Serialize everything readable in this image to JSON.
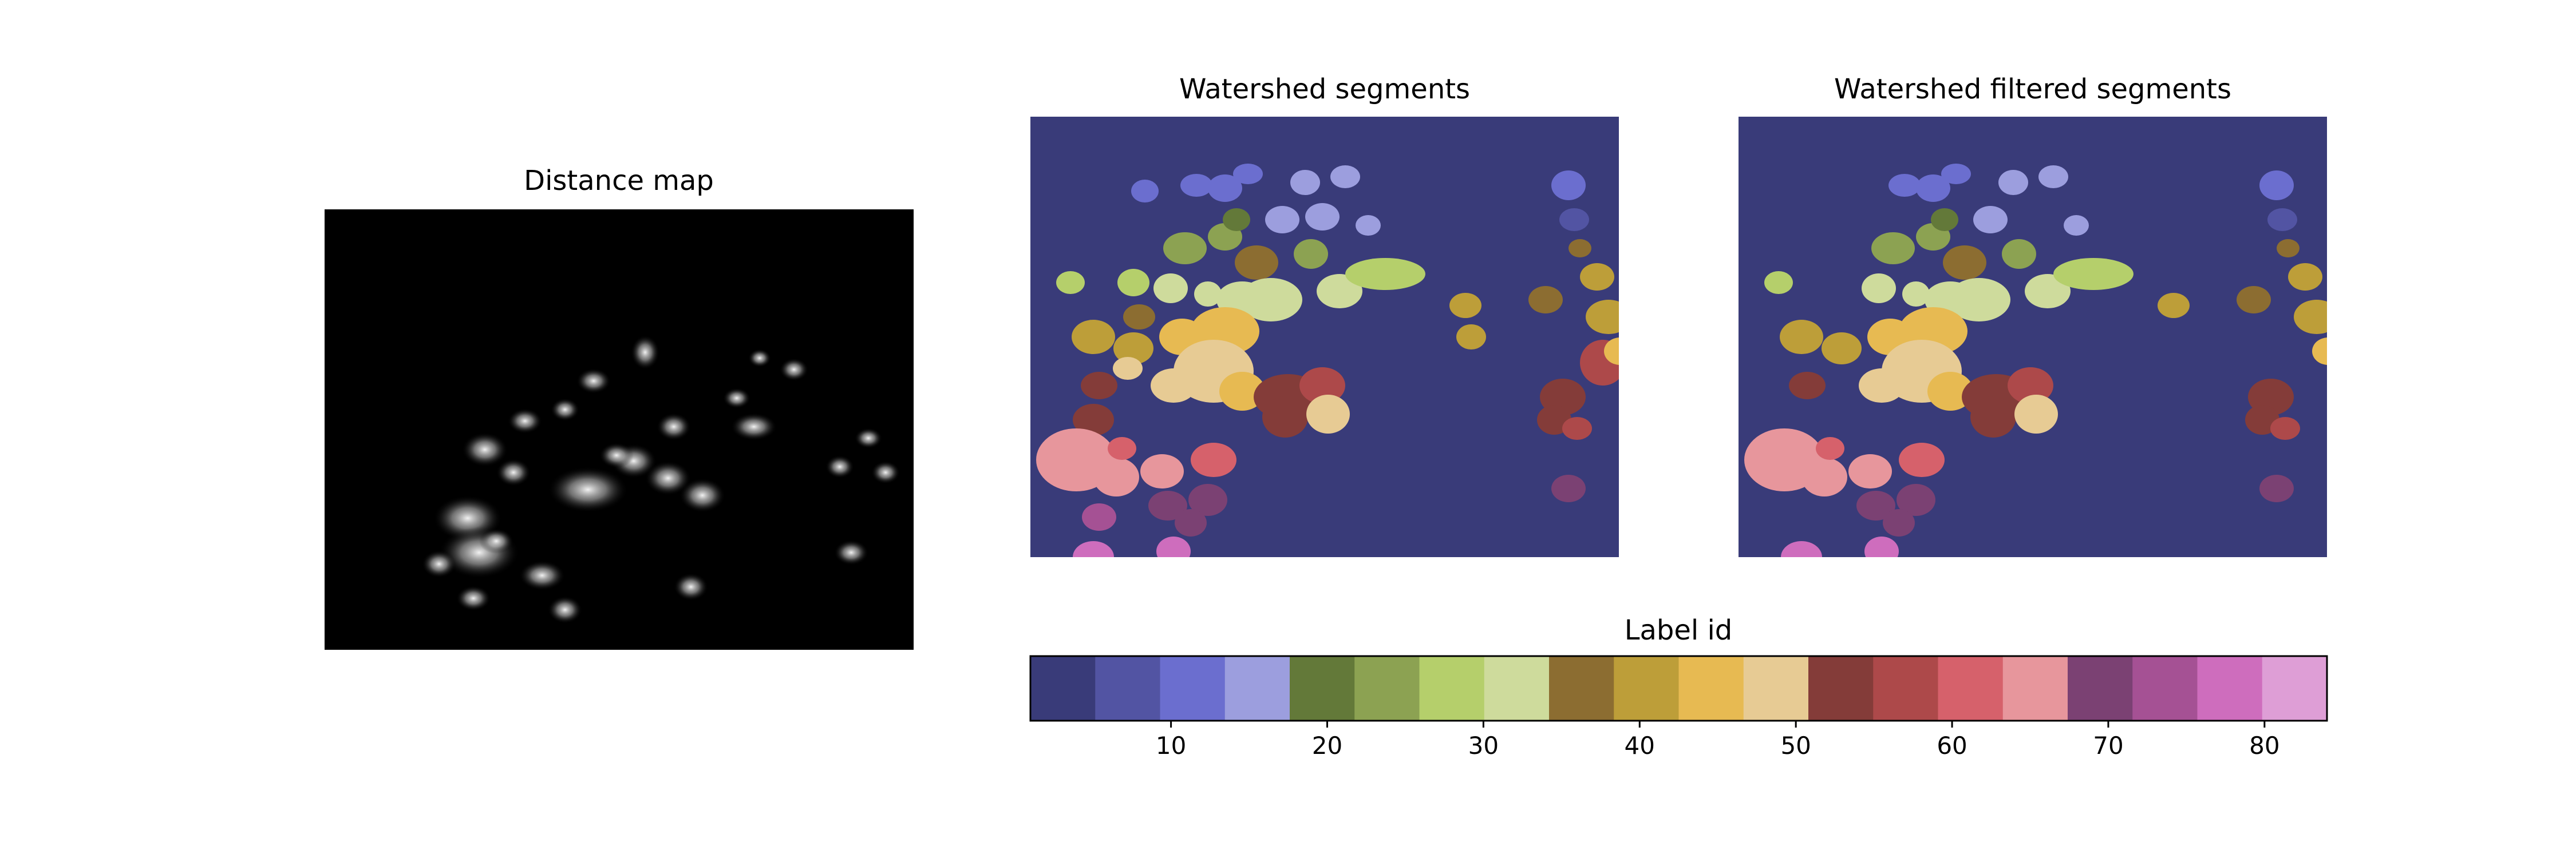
{
  "panels": [
    {
      "title": "Distance map"
    },
    {
      "title": "Watershed segments"
    },
    {
      "title": "Watershed filtered segments"
    }
  ],
  "colorbar": {
    "label": "Label id",
    "min": 1,
    "max": 84,
    "ticks": [
      "10",
      "20",
      "30",
      "40",
      "50",
      "60",
      "70",
      "80"
    ],
    "colors": [
      "#393b79",
      "#5254a3",
      "#6b6ecf",
      "#9c9ede",
      "#637939",
      "#8ca252",
      "#b5cf6b",
      "#cedb9c",
      "#8c6d31",
      "#bd9e39",
      "#e7ba52",
      "#e7cb94",
      "#843c39",
      "#ad494a",
      "#d6616b",
      "#e7969c",
      "#7b4173",
      "#a55194",
      "#ce6dbd",
      "#de9ed6"
    ]
  },
  "chart_data": {
    "type": "heatmap",
    "panels": [
      "Distance map",
      "Watershed segments",
      "Watershed filtered segments"
    ],
    "colorbar_label": "Label id",
    "colorbar_range": [
      1,
      84
    ],
    "colorbar_ticks": [
      10,
      20,
      30,
      40,
      50,
      60,
      70,
      80
    ],
    "colormap": "tab20b",
    "background_color": "#393b79",
    "distance_map_colormap": "gray"
  }
}
